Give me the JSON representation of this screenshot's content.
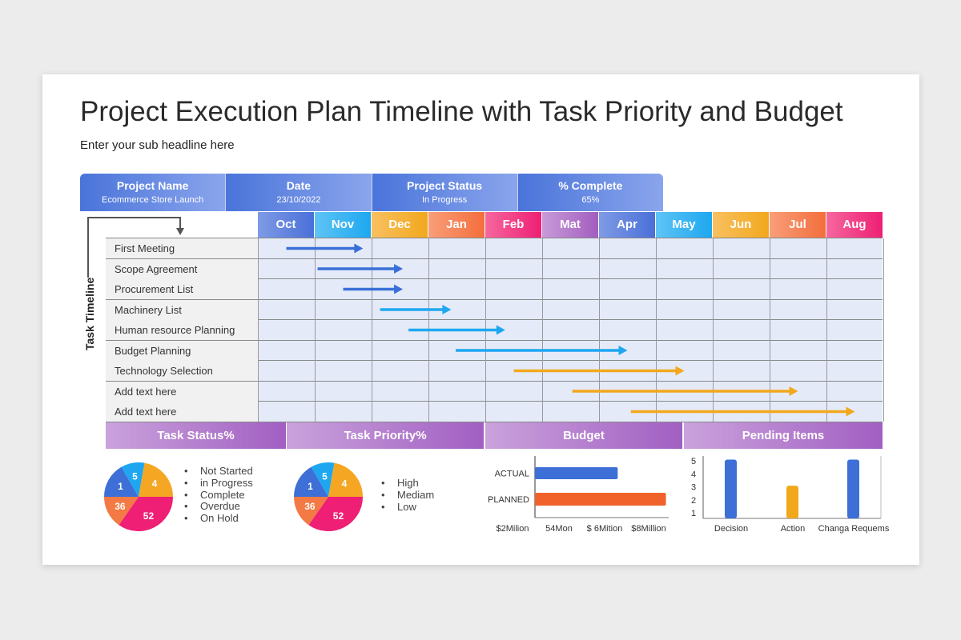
{
  "title": "Project Execution Plan Timeline with Task Priority and Budget",
  "subtitle": "Enter your sub headline here",
  "info": [
    {
      "label": "Project Name",
      "value": "Ecommerce Store Launch"
    },
    {
      "label": "Date",
      "value": "23/10/2022"
    },
    {
      "label": "Project Status",
      "value": "In Progress"
    },
    {
      "label": "% Complete",
      "value": "65%"
    }
  ],
  "side_label": "Task Timeline",
  "months": [
    {
      "name": "Oct",
      "color": [
        "#7f9be6",
        "#4a6fd8"
      ]
    },
    {
      "name": "Nov",
      "color": [
        "#5ec4f6",
        "#1ea7f0"
      ]
    },
    {
      "name": "Dec",
      "color": [
        "#f8c060",
        "#f2a81d"
      ]
    },
    {
      "name": "Jan",
      "color": [
        "#f99e7a",
        "#f36e3c"
      ]
    },
    {
      "name": "Feb",
      "color": [
        "#f6679e",
        "#ee1f74"
      ]
    },
    {
      "name": "Mat",
      "color": [
        "#c89ad8",
        "#a25ebf"
      ]
    },
    {
      "name": "Apr",
      "color": [
        "#7f9be6",
        "#4a6fd8"
      ]
    },
    {
      "name": "May",
      "color": [
        "#5ec4f6",
        "#1ea7f0"
      ]
    },
    {
      "name": "Jun",
      "color": [
        "#f8c060",
        "#f2a81d"
      ]
    },
    {
      "name": "Jul",
      "color": [
        "#f99e7a",
        "#f36e3c"
      ]
    },
    {
      "name": "Aug",
      "color": [
        "#f6679e",
        "#ee1f74"
      ]
    }
  ],
  "tasks": [
    {
      "name": "First Meeting",
      "start": 0.5,
      "end": 1.85,
      "color": "#3a6fd8"
    },
    {
      "name": "Scope Agreement",
      "start": 1.05,
      "end": 2.55,
      "color": "#3a6fd8"
    },
    {
      "name": "Procurement List",
      "start": 1.5,
      "end": 2.55,
      "color": "#3a6fd8"
    },
    {
      "name": "Machinery List",
      "start": 2.15,
      "end": 3.4,
      "color": "#1ea7f0"
    },
    {
      "name": "Human resource Planning",
      "start": 2.65,
      "end": 4.35,
      "color": "#1ea7f0"
    },
    {
      "name": "Budget Planning",
      "start": 3.48,
      "end": 6.5,
      "color": "#1ea7f0"
    },
    {
      "name": "Technology Selection",
      "start": 4.5,
      "end": 7.5,
      "color": "#f2a81d"
    },
    {
      "name": "Add text here",
      "start": 5.53,
      "end": 9.5,
      "color": "#f2a81d"
    },
    {
      "name": "Add text here",
      "start": 6.56,
      "end": 10.5,
      "color": "#f2a81d"
    }
  ],
  "sections": [
    "Task Status%",
    "Task Priority%",
    "Budget",
    "Pending Items"
  ],
  "pie_slices": [
    {
      "label": "5",
      "color": "#1ea7f0"
    },
    {
      "label": "4",
      "color": "#f5a623"
    },
    {
      "label": "52",
      "color": "#ee1f74"
    },
    {
      "label": "36",
      "color": "#f37a44"
    },
    {
      "label": "1",
      "color": "#3d6fd6"
    }
  ],
  "status_legend": [
    "Not Started",
    "in Progress",
    "Complete",
    "Overdue",
    "On Hold"
  ],
  "priority_legend": [
    "High",
    "Mediam",
    "Low"
  ],
  "budget": {
    "bars": [
      {
        "label": "ACTUAL",
        "value": 6.6,
        "color": "#3d6fd6"
      },
      {
        "label": "PLANNED",
        "value": 8.7,
        "color": "#f0622a"
      }
    ],
    "ticks": [
      "$2Milion",
      "54Mon",
      "$ 6Mition",
      "$8Million"
    ]
  },
  "pending": {
    "y_ticks": [
      "5",
      "4",
      "3",
      "2",
      "1"
    ],
    "bars": [
      {
        "label": "Decision",
        "value": 5,
        "color": "#3d6fd6"
      },
      {
        "label": "Action",
        "value": 3,
        "color": "#f2a81d"
      },
      {
        "label": "Changa Requems",
        "value": 5,
        "color": "#3d6fd6"
      }
    ]
  }
}
